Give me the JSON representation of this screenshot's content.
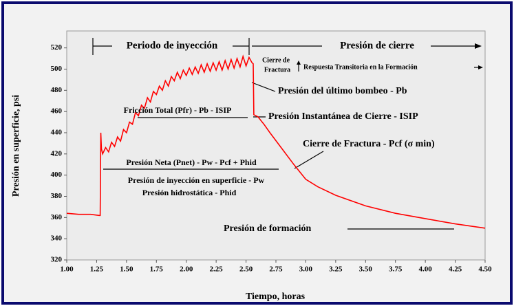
{
  "chart_data": {
    "type": "line",
    "x_label": "Tiempo, horas",
    "y_label": "Presión en superficie, psi",
    "xlim": [
      1,
      4.5
    ],
    "ylim": [
      320,
      536
    ],
    "xticks": [
      {
        "value": 1,
        "label": "1.00"
      },
      {
        "value": 1.25,
        "label": "1.25"
      },
      {
        "value": 1.5,
        "label": "1.50"
      },
      {
        "value": 1.75,
        "label": "1.75"
      },
      {
        "value": 2,
        "label": "2.00"
      },
      {
        "value": 2.25,
        "label": "2.25"
      },
      {
        "value": 2.5,
        "label": "2.50"
      },
      {
        "value": 2.75,
        "label": "2.75"
      },
      {
        "value": 3,
        "label": "3.00"
      },
      {
        "value": 3.25,
        "label": "3.25"
      },
      {
        "value": 3.5,
        "label": "3.50"
      },
      {
        "value": 3.75,
        "label": "3.75"
      },
      {
        "value": 4,
        "label": "4.00"
      },
      {
        "value": 4.25,
        "label": "4.25"
      },
      {
        "value": 4.5,
        "label": "4.50"
      }
    ],
    "yticks": [
      320,
      340,
      360,
      380,
      400,
      420,
      440,
      460,
      480,
      500,
      520
    ],
    "series": [
      {
        "color": "#ff0000",
        "x": [
          1.0,
          1.1,
          1.2,
          1.27,
          1.28,
          1.285,
          1.29,
          1.3,
          1.325,
          1.35,
          1.375,
          1.4,
          1.425,
          1.45,
          1.475,
          1.5,
          1.525,
          1.55,
          1.575,
          1.6,
          1.625,
          1.65,
          1.675,
          1.7,
          1.725,
          1.75,
          1.775,
          1.8,
          1.825,
          1.85,
          1.875,
          1.9,
          1.925,
          1.95,
          1.975,
          2.0,
          2.025,
          2.05,
          2.075,
          2.1,
          2.125,
          2.15,
          2.175,
          2.2,
          2.225,
          2.25,
          2.275,
          2.3,
          2.325,
          2.35,
          2.375,
          2.4,
          2.425,
          2.45,
          2.475,
          2.5,
          2.525,
          2.55,
          2.56,
          2.565,
          2.6,
          2.65,
          2.7,
          2.8,
          2.9,
          3.0,
          3.1,
          3.25,
          3.5,
          3.75,
          4.0,
          4.25,
          4.5
        ],
        "values": [
          364,
          363,
          363,
          362,
          362,
          440,
          425,
          420,
          426,
          422,
          431,
          427,
          436,
          432,
          443,
          440,
          450,
          448,
          459,
          456,
          466,
          463,
          473,
          469,
          479,
          476,
          484,
          480,
          489,
          484,
          493,
          489,
          497,
          491,
          499,
          494,
          501,
          495,
          502,
          496,
          504,
          497,
          505,
          498,
          506,
          499,
          507,
          499,
          508,
          500,
          509,
          501,
          510,
          502,
          512,
          503,
          511,
          506,
          505,
          457,
          455,
          448,
          440,
          425,
          410,
          396,
          389,
          381,
          371,
          364,
          359,
          354,
          350
        ]
      }
    ],
    "annotations": [
      "Periodo de inyección",
      "Presión de cierre",
      "Cierre de",
      "Fractura",
      "Respuesta Transitoria en la Formación",
      "Presión del último bombeo - Pb",
      "Fricción Total (Pfr) - Pb - ISIP",
      "Presión Instantánea de Cierre - ISIP",
      "Cierre de Fractura - Pcf (σ min)",
      "Presión Neta (Pnet) - Pw - Pcf + Phid",
      "Presión de inyección en superficie - Pw",
      "Presión hidrostática - Phid",
      "Presión de formación"
    ]
  }
}
